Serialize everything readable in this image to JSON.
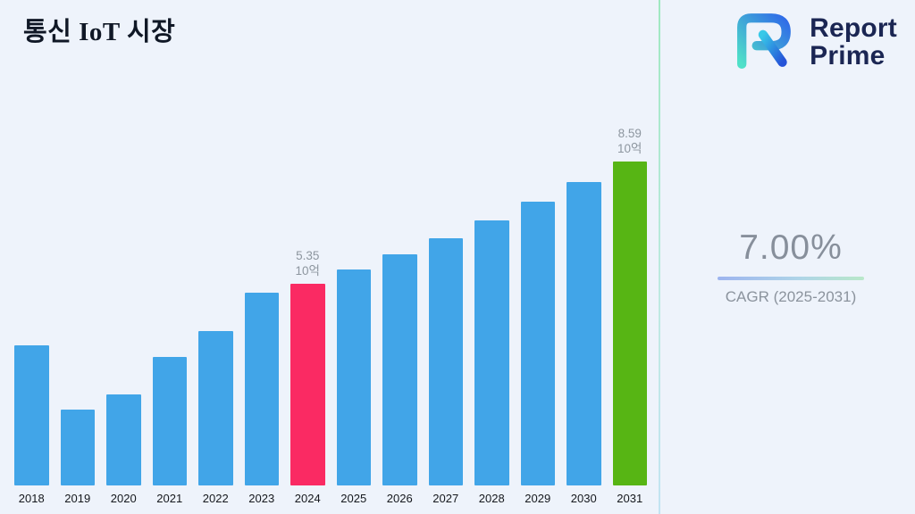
{
  "logo": {
    "line1": "Report",
    "line2": "Prime"
  },
  "cagr": {
    "value": "7.00%",
    "label": "CAGR (2025-2031)"
  },
  "chart_data": {
    "type": "bar",
    "title": "통신 IoT 시장",
    "categories": [
      "2018",
      "2019",
      "2020",
      "2021",
      "2022",
      "2023",
      "2024",
      "2025",
      "2026",
      "2027",
      "2028",
      "2029",
      "2030",
      "2031"
    ],
    "values": [
      3.7,
      2.0,
      2.4,
      3.4,
      4.1,
      5.1,
      5.35,
      5.72,
      6.13,
      6.56,
      7.02,
      7.51,
      8.03,
      8.59
    ],
    "unit": "10억",
    "ylim": [
      0,
      9.5
    ],
    "grid": false,
    "legend": "none",
    "data_labels": [
      {
        "category": "2024",
        "value": "5.35",
        "unit": "10억"
      },
      {
        "category": "2031",
        "value": "8.59",
        "unit": "10억"
      }
    ],
    "bar_colors": {
      "default": "#41a5e8",
      "2024": "#fa2a63",
      "2031": "#57b514"
    },
    "background": "#eef3fb"
  }
}
